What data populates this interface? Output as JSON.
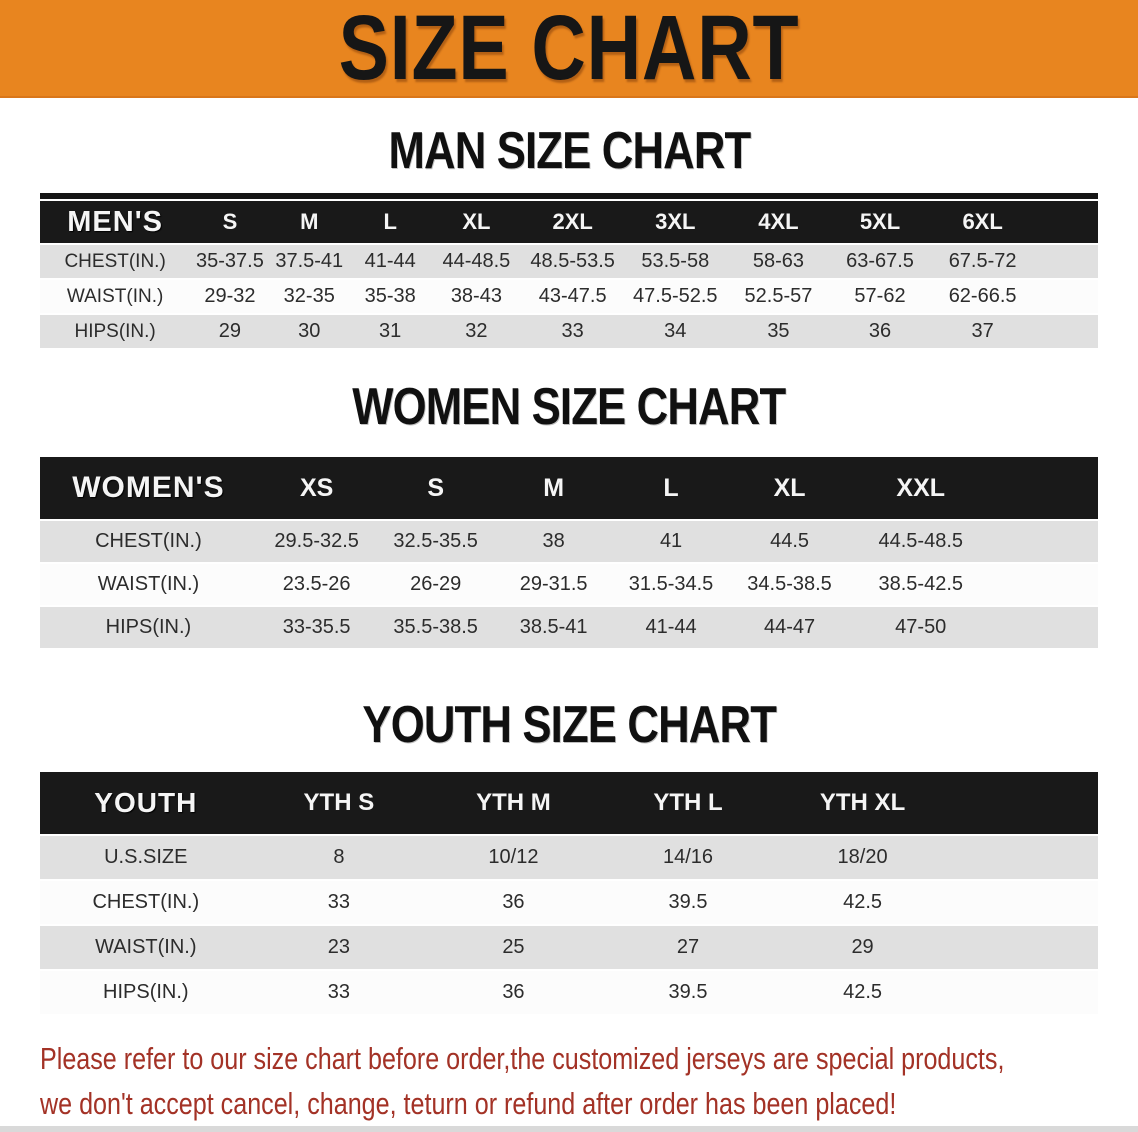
{
  "banner": {
    "title": "SIZE CHART",
    "background_color": "#E8851F",
    "text_color": "#161616"
  },
  "men": {
    "title": "MAN SIZE CHART",
    "table": {
      "header": [
        "MEN'S",
        "S",
        "M",
        "L",
        "XL",
        "2XL",
        "3XL",
        "4XL",
        "5XL",
        "6XL"
      ],
      "rows": [
        {
          "label": "CHEST(IN.)",
          "values": [
            "35-37.5",
            "37.5-41",
            "41-44",
            "44-48.5",
            "48.5-53.5",
            "53.5-58",
            "58-63",
            "63-67.5",
            "67.5-72"
          ]
        },
        {
          "label": "WAIST(IN.)",
          "values": [
            "29-32",
            "32-35",
            "35-38",
            "38-43",
            "43-47.5",
            "47.5-52.5",
            "52.5-57",
            "57-62",
            "62-66.5"
          ]
        },
        {
          "label": "HIPS(IN.)",
          "values": [
            "29",
            "30",
            "31",
            "32",
            "33",
            "34",
            "35",
            "36",
            "37"
          ]
        }
      ]
    }
  },
  "women": {
    "title": "WOMEN SIZE CHART",
    "table": {
      "header": [
        "WOMEN'S",
        "XS",
        "S",
        "M",
        "L",
        "XL",
        "XXL"
      ],
      "rows": [
        {
          "label": "CHEST(IN.)",
          "values": [
            "29.5-32.5",
            "32.5-35.5",
            "38",
            "41",
            "44.5",
            "44.5-48.5"
          ]
        },
        {
          "label": "WAIST(IN.)",
          "values": [
            "23.5-26",
            "26-29",
            "29-31.5",
            "31.5-34.5",
            "34.5-38.5",
            "38.5-42.5"
          ]
        },
        {
          "label": "HIPS(IN.)",
          "values": [
            "33-35.5",
            "35.5-38.5",
            "38.5-41",
            "41-44",
            "44-47",
            "47-50"
          ]
        }
      ]
    }
  },
  "youth": {
    "title": "YOUTH SIZE CHART",
    "table": {
      "header": [
        "YOUTH",
        "YTH S",
        "YTH M",
        "YTH L",
        "YTH XL"
      ],
      "rows": [
        {
          "label": "U.S.SIZE",
          "values": [
            "8",
            "10/12",
            "14/16",
            "18/20"
          ]
        },
        {
          "label": "CHEST(IN.)",
          "values": [
            "33",
            "36",
            "39.5",
            "42.5"
          ]
        },
        {
          "label": "WAIST(IN.)",
          "values": [
            "23",
            "25",
            "27",
            "29"
          ]
        },
        {
          "label": "HIPS(IN.)",
          "values": [
            "33",
            "36",
            "39.5",
            "42.5"
          ]
        }
      ]
    }
  },
  "disclaimer": {
    "lines": [
      "Please refer to our size chart before order,the customized jerseys are special products,",
      "we don't accept cancel, change, teturn or refund after order has been placed!"
    ],
    "text_color": "#A33226"
  },
  "colors": {
    "table_header_black": "#191919",
    "row_gray": "#E0E0E0",
    "row_white": "#FCFCFC"
  }
}
